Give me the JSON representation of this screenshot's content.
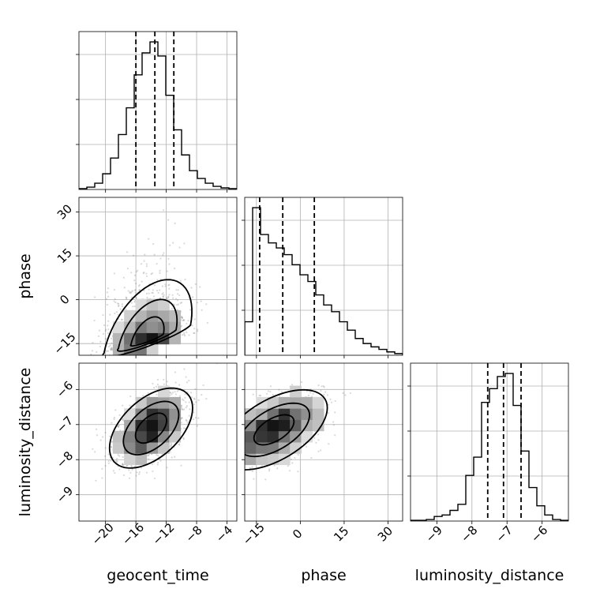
{
  "chart_data": {
    "type": "corner",
    "parameters": [
      "geocent_time",
      "phase",
      "luminosity_distance"
    ],
    "axis_labels": {
      "geocent_time": "geocent_time",
      "phase": "phase",
      "luminosity_distance": "luminosity_distance"
    },
    "ranges": {
      "geocent_time": [
        -23.5,
        -2.7
      ],
      "phase": [
        -19,
        35
      ],
      "luminosity_distance": [
        -9.75,
        -5.25
      ]
    },
    "ticks": {
      "geocent_time": [
        -20,
        -16,
        -12,
        -8,
        -4
      ],
      "phase": [
        -15,
        0,
        15,
        30
      ],
      "luminosity_distance": [
        -9,
        -8,
        -7,
        -6
      ]
    },
    "tick_labels": {
      "geocent_time": [
        "−20",
        "−16",
        "−12",
        "−8",
        "−4"
      ],
      "phase": [
        "−15",
        "0",
        "15",
        "30"
      ],
      "luminosity_distance": [
        "−9",
        "−8",
        "−7",
        "−6"
      ]
    },
    "quantiles": {
      "geocent_time": [
        -16.0,
        -13.5,
        -11.0
      ],
      "phase": [
        -13.9,
        -6.0,
        4.8
      ],
      "luminosity_distance": [
        -7.55,
        -7.1,
        -6.6
      ]
    },
    "histograms": {
      "geocent_time": {
        "bin_edges": [
          -23.5,
          -22.46,
          -21.42,
          -20.38,
          -19.34,
          -18.3,
          -17.26,
          -16.22,
          -15.18,
          -14.14,
          -13.1,
          -12.06,
          -11.02,
          -9.98,
          -8.94,
          -7.9,
          -6.86,
          -5.82,
          -4.78,
          -3.74,
          -2.7
        ],
        "counts": [
          0.005,
          0.015,
          0.04,
          0.1,
          0.2,
          0.35,
          0.52,
          0.73,
          0.87,
          0.94,
          0.85,
          0.6,
          0.38,
          0.22,
          0.12,
          0.07,
          0.04,
          0.02,
          0.01,
          0.005
        ]
      },
      "phase": {
        "bin_edges": [
          -19,
          -16.3,
          -13.6,
          -10.9,
          -8.2,
          -5.5,
          -2.8,
          -0.1,
          2.6,
          5.3,
          8.0,
          10.7,
          13.4,
          16.1,
          18.8,
          21.5,
          24.2,
          26.9,
          29.6,
          32.3,
          35.0
        ],
        "counts": [
          0.2,
          0.88,
          0.72,
          0.67,
          0.64,
          0.6,
          0.54,
          0.48,
          0.44,
          0.36,
          0.3,
          0.26,
          0.2,
          0.15,
          0.1,
          0.07,
          0.05,
          0.035,
          0.02,
          0.01
        ]
      },
      "luminosity_distance": {
        "bin_edges": [
          -9.75,
          -9.525,
          -9.3,
          -9.075,
          -8.85,
          -8.625,
          -8.4,
          -8.175,
          -7.95,
          -7.725,
          -7.5,
          -7.275,
          -7.05,
          -6.825,
          -6.6,
          -6.375,
          -6.15,
          -5.925,
          -5.7,
          -5.475,
          -5.25
        ],
        "counts": [
          0.005,
          0.005,
          0.01,
          0.03,
          0.04,
          0.07,
          0.11,
          0.3,
          0.42,
          0.78,
          0.87,
          0.95,
          0.97,
          0.76,
          0.46,
          0.22,
          0.1,
          0.04,
          0.01,
          0.005
        ]
      }
    },
    "pairs": [
      {
        "x": "geocent_time",
        "y": "phase",
        "center": [
          -14.5,
          -8
        ],
        "sigma": [
          2.5,
          7
        ],
        "corr": 0.3
      },
      {
        "x": "geocent_time",
        "y": "luminosity_distance",
        "center": [
          -14,
          -7.1
        ],
        "sigma": [
          2.4,
          0.5
        ],
        "corr": 0.5
      },
      {
        "x": "phase",
        "y": "luminosity_distance",
        "center": [
          -9,
          -7.15
        ],
        "sigma": [
          8,
          0.5
        ],
        "corr": 0.55
      }
    ],
    "grid": true
  }
}
